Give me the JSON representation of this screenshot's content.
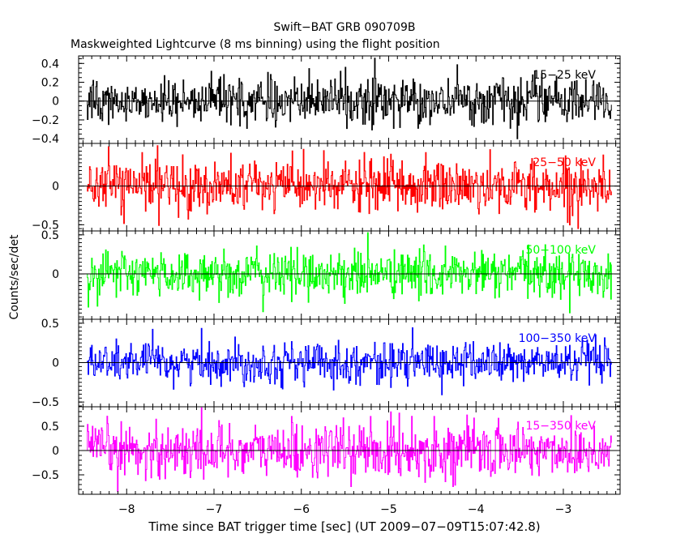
{
  "chart_data": {
    "type": "line",
    "title": "Swift−BAT GRB 090709B",
    "subtitle": "Maskweighted Lightcurve (8 ms binning) using the flight position",
    "xlabel": "Time since BAT trigger time [sec] (UT 2009−07−09T15:07:42.8)",
    "ylabel": "Counts/sec/det",
    "xlim": [
      -8.55,
      -2.35
    ],
    "x_ticks": [
      -8,
      -7,
      -6,
      -5,
      -4,
      -3
    ],
    "x_tick_labels": [
      "−8",
      "−7",
      "−6",
      "−5",
      "−4",
      "−3"
    ],
    "x_range_data": [
      -8.45,
      -2.45
    ],
    "bin_size_sec": 0.008,
    "grid": false,
    "panels": [
      {
        "band": "15−25 keV",
        "color": "#000000",
        "ylim": [
          -0.45,
          0.48
        ],
        "y_ticks": [
          0.4,
          0.2,
          0,
          -0.2,
          -0.4
        ],
        "y_tick_labels": [
          "0.4",
          "0.2",
          "0",
          "−0.2",
          "−0.4"
        ],
        "noise_sigma": 0.12,
        "clip": 0.46
      },
      {
        "band": "25−50 keV",
        "color": "#ff0000",
        "ylim": [
          -0.58,
          0.55
        ],
        "y_ticks": [
          0,
          -0.5
        ],
        "y_tick_labels": [
          "0",
          "−0.5"
        ],
        "noise_sigma": 0.17,
        "clip": 0.55
      },
      {
        "band": "50−100 keV",
        "color": "#00ff00",
        "ylim": [
          -0.58,
          0.55
        ],
        "y_ticks": [
          0.5,
          0
        ],
        "y_tick_labels": [
          "0.5",
          "0"
        ],
        "noise_sigma": 0.15,
        "clip": 0.55
      },
      {
        "band": "100−350 keV",
        "color": "#0000ff",
        "ylim": [
          -0.56,
          0.55
        ],
        "y_ticks": [
          0.5,
          0,
          -0.5
        ],
        "y_tick_labels": [
          "0.5",
          "0",
          "−0.5"
        ],
        "noise_sigma": 0.13,
        "clip": 0.55
      },
      {
        "band": "15−350 keV",
        "color": "#ff00ff",
        "ylim": [
          -0.9,
          0.9
        ],
        "y_ticks": [
          0.5,
          0,
          -0.5
        ],
        "y_tick_labels": [
          "0.5",
          "0",
          "−0.5"
        ],
        "noise_sigma": 0.28,
        "clip": 0.9
      }
    ]
  }
}
